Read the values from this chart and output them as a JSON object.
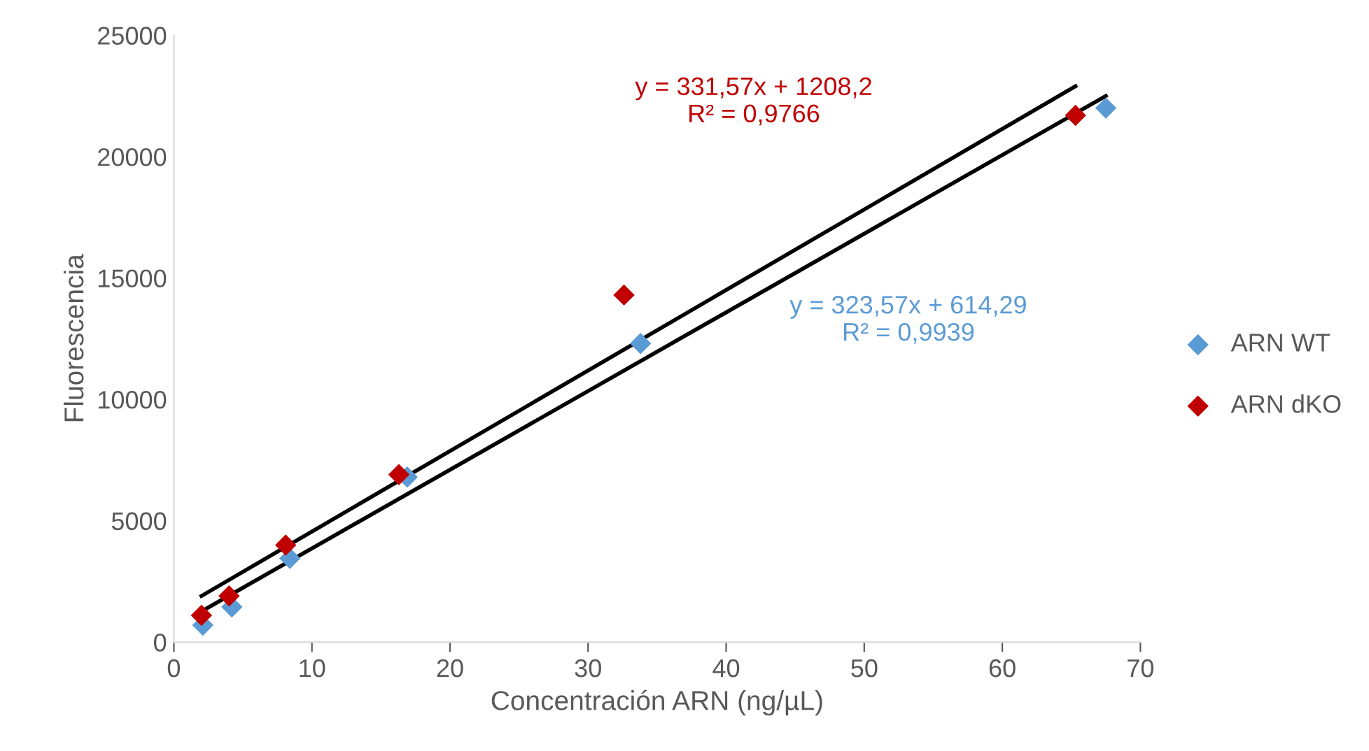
{
  "chart_data": {
    "type": "scatter",
    "xlabel": "Concentración ARN (ng/µL)",
    "ylabel": "Fluorescencia",
    "xlim": [
      0,
      70
    ],
    "xticks": [
      0,
      10,
      20,
      30,
      40,
      50,
      60,
      70
    ],
    "ylim": [
      0,
      25000
    ],
    "yticks": [
      0,
      5000,
      10000,
      15000,
      20000,
      25000
    ],
    "grid": false,
    "legend": "right",
    "marker": "diamond",
    "series": [
      {
        "name": "ARN WT",
        "color": "#5b9bd5",
        "x": [
          2.1,
          4.2,
          8.4,
          16.9,
          33.8,
          67.5
        ],
        "values": [
          700,
          1450,
          3450,
          6800,
          12300,
          22000
        ]
      },
      {
        "name": "ARN dKO",
        "color": "#c00000",
        "x": [
          2.0,
          4.0,
          8.1,
          16.3,
          32.6,
          65.3
        ],
        "values": [
          1100,
          1900,
          4000,
          6900,
          14300,
          21700
        ]
      },
      {
        "type": "line",
        "marker": "none",
        "color": "#000000",
        "x": [
          2.0,
          65.3
        ],
        "values": [
          1900,
          22900
        ]
      },
      {
        "type": "line",
        "marker": "none",
        "color": "#000000",
        "x": [
          2.1,
          67.5
        ],
        "values": [
          1300,
          22500
        ]
      }
    ],
    "annotations": [
      "y = 323,57x + 614,29\nR² = 0,9939",
      "y = 331,57x + 1208,2\nR² = 0,9766"
    ]
  }
}
